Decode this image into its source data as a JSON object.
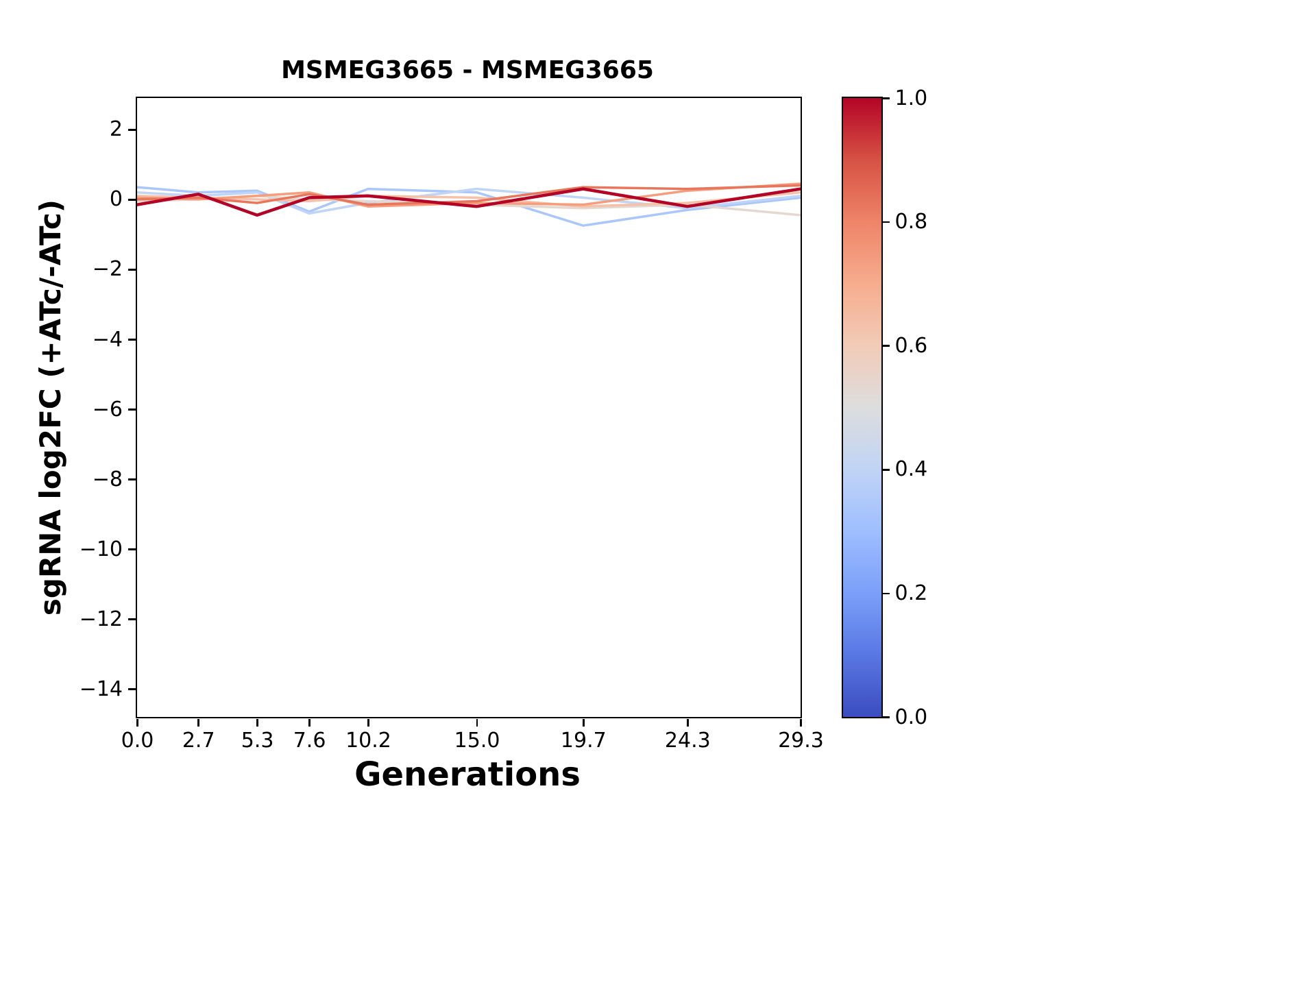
{
  "chart_data": {
    "type": "line",
    "title": "MSMEG3665 - MSMEG3665",
    "xlabel": "Generations",
    "ylabel": "sgRNA log2FC (+ATc/-ATc)",
    "x": [
      0.0,
      2.7,
      5.3,
      7.6,
      10.2,
      15.0,
      19.7,
      24.3,
      29.3
    ],
    "xtick_labels": [
      "0.0",
      "2.7",
      "5.3",
      "7.6",
      "10.2",
      "15.0",
      "19.7",
      "24.3",
      "29.3"
    ],
    "yticks": [
      2,
      0,
      -2,
      -4,
      -6,
      -8,
      -10,
      -12,
      -14
    ],
    "ytick_labels": [
      "2",
      "0",
      "−2",
      "−4",
      "−6",
      "−8",
      "−10",
      "−12",
      "−14"
    ],
    "xlim": [
      0,
      29.3
    ],
    "ylim": [
      -14.8,
      2.9
    ],
    "grid": false,
    "series": [
      {
        "color_value": 0.4,
        "color": "#aac7fd",
        "width": 3.5,
        "values": [
          0.35,
          0.2,
          0.25,
          -0.35,
          0.3,
          0.2,
          -0.75,
          -0.3,
          0.05
        ]
      },
      {
        "color_value": 0.45,
        "color": "#c0d4f5",
        "width": 3.5,
        "values": [
          0.2,
          0.1,
          0.2,
          -0.4,
          -0.1,
          0.3,
          0.05,
          -0.25,
          0.1
        ]
      },
      {
        "color_value": 0.55,
        "color": "#e5d8d1",
        "width": 3.5,
        "values": [
          -0.05,
          0.0,
          0.1,
          0.0,
          -0.05,
          -0.15,
          -0.25,
          -0.15,
          -0.45
        ]
      },
      {
        "color_value": 0.65,
        "color": "#f5c1a9",
        "width": 3.5,
        "values": [
          0.1,
          0.05,
          0.0,
          -0.05,
          0.1,
          0.05,
          -0.2,
          -0.1,
          0.2
        ]
      },
      {
        "color_value": 0.75,
        "color": "#f59d7c",
        "width": 3.5,
        "values": [
          0.05,
          0.0,
          0.1,
          0.2,
          -0.2,
          -0.1,
          -0.15,
          0.25,
          0.45
        ]
      },
      {
        "color_value": 0.85,
        "color": "#e8765c",
        "width": 3.5,
        "values": [
          0.0,
          0.05,
          -0.1,
          0.15,
          -0.15,
          -0.05,
          0.35,
          0.3,
          0.4
        ]
      },
      {
        "color_value": 1.0,
        "color": "#b40426",
        "width": 4.5,
        "values": [
          -0.15,
          0.15,
          -0.45,
          0.05,
          0.1,
          -0.2,
          0.3,
          -0.2,
          0.3
        ]
      }
    ],
    "colorbar": {
      "min": 0.0,
      "max": 1.0,
      "ticks": [
        1.0,
        0.8,
        0.6,
        0.4,
        0.2,
        0.0
      ],
      "tick_labels": [
        "1.0",
        "0.8",
        "0.6",
        "0.4",
        "0.2",
        "0.0"
      ],
      "colormap": "coolwarm",
      "stops": [
        "#3b4cc0",
        "#5977e3",
        "#7b9ff9",
        "#9ebeff",
        "#c0d4f5",
        "#dddddd",
        "#f2cbb7",
        "#f7ac8e",
        "#ee8468",
        "#d65244",
        "#b40426"
      ]
    }
  }
}
